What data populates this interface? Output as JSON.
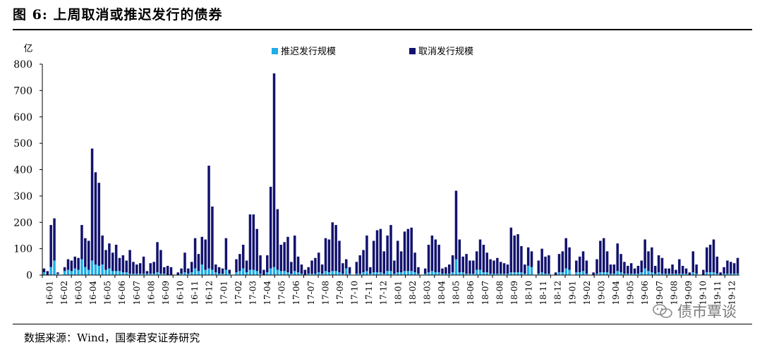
{
  "figure": {
    "title": "图 6:  上周取消或推迟发行的债券",
    "source": "数据来源：Wind，国泰君安证券研究",
    "watermark": "债市覃谈"
  },
  "colors": {
    "postponed": "#1EAEE8",
    "cancelled": "#12126E"
  },
  "chart_data": {
    "type": "bar",
    "stacked": true,
    "unit_label": "亿",
    "ylim": [
      0,
      800
    ],
    "yticks": [
      0,
      100,
      200,
      300,
      400,
      500,
      600,
      700,
      800
    ],
    "grid": false,
    "legend_position": "top",
    "series": [
      {
        "name": "推迟发行规模",
        "key": "postponed"
      },
      {
        "name": "取消发行规模",
        "key": "cancelled"
      }
    ],
    "x_ticks": [
      "16-01",
      "16-02",
      "16-03",
      "16-04",
      "16-05",
      "16-06",
      "16-07",
      "16-08",
      "16-09",
      "16-10",
      "16-11",
      "16-12",
      "17-01",
      "17-02",
      "17-03",
      "17-04",
      "17-05",
      "17-06",
      "17-07",
      "17-08",
      "17-09",
      "17-10",
      "17-11",
      "17-12",
      "18-01",
      "18-02",
      "18-03",
      "18-04",
      "18-05",
      "18-06",
      "18-07",
      "18-08",
      "18-09",
      "18-10",
      "18-11",
      "18-12",
      "19-01",
      "19-02",
      "19-03",
      "19-04",
      "19-05",
      "19-06",
      "19-07",
      "19-08",
      "19-09",
      "19-10",
      "19-11",
      "19-12"
    ],
    "weekly_totals": [
      25,
      15,
      190,
      215,
      10,
      0,
      30,
      60,
      55,
      70,
      65,
      190,
      140,
      130,
      480,
      390,
      350,
      150,
      95,
      120,
      85,
      115,
      65,
      75,
      55,
      95,
      50,
      40,
      45,
      70,
      15,
      45,
      50,
      125,
      95,
      30,
      35,
      30,
      0,
      10,
      25,
      85,
      25,
      50,
      140,
      80,
      145,
      135,
      415,
      260,
      40,
      30,
      25,
      140,
      20,
      0,
      60,
      80,
      115,
      55,
      230,
      230,
      175,
      75,
      20,
      75,
      335,
      765,
      250,
      115,
      125,
      145,
      50,
      150,
      70,
      40,
      20,
      30,
      55,
      65,
      85,
      40,
      140,
      135,
      200,
      190,
      130,
      45,
      60,
      30,
      0,
      50,
      75,
      95,
      150,
      30,
      130,
      170,
      175,
      90,
      150,
      190,
      55,
      130,
      90,
      165,
      175,
      180,
      85,
      30,
      0,
      25,
      115,
      150,
      135,
      115,
      25,
      30,
      40,
      75,
      320,
      135,
      70,
      80,
      55,
      55,
      90,
      135,
      115,
      85,
      60,
      55,
      65,
      50,
      45,
      40,
      180,
      150,
      155,
      110,
      40,
      105,
      90,
      0,
      55,
      100,
      70,
      75,
      0,
      10,
      80,
      90,
      140,
      105,
      0,
      55,
      70,
      90,
      55,
      0,
      10,
      60,
      130,
      140,
      90,
      40,
      40,
      120,
      80,
      50,
      35,
      45,
      25,
      35,
      55,
      135,
      90,
      105,
      35,
      75,
      65,
      25,
      25,
      40,
      20,
      60,
      35,
      25,
      10,
      90,
      40,
      0,
      20,
      105,
      115,
      135,
      70,
      10,
      30,
      55,
      50,
      45,
      65
    ],
    "weekly_postponed": [
      10,
      0,
      30,
      55,
      5,
      0,
      15,
      20,
      15,
      25,
      20,
      60,
      30,
      20,
      55,
      40,
      35,
      40,
      20,
      25,
      15,
      15,
      15,
      10,
      10,
      5,
      5,
      5,
      5,
      5,
      5,
      5,
      5,
      10,
      5,
      5,
      0,
      0,
      0,
      0,
      5,
      10,
      5,
      10,
      25,
      15,
      40,
      20,
      25,
      20,
      10,
      5,
      5,
      20,
      5,
      0,
      10,
      15,
      25,
      10,
      20,
      20,
      15,
      5,
      0,
      10,
      25,
      30,
      20,
      15,
      15,
      10,
      5,
      15,
      10,
      5,
      0,
      5,
      5,
      5,
      10,
      5,
      15,
      10,
      15,
      15,
      10,
      5,
      25,
      5,
      0,
      5,
      5,
      10,
      15,
      5,
      10,
      10,
      10,
      5,
      15,
      15,
      5,
      10,
      10,
      15,
      15,
      15,
      10,
      5,
      0,
      5,
      10,
      15,
      10,
      10,
      5,
      5,
      5,
      10,
      60,
      10,
      10,
      5,
      5,
      5,
      20,
      20,
      10,
      10,
      5,
      5,
      5,
      5,
      5,
      5,
      10,
      10,
      10,
      10,
      5,
      35,
      30,
      0,
      5,
      10,
      5,
      5,
      0,
      0,
      10,
      10,
      25,
      20,
      0,
      10,
      10,
      15,
      5,
      0,
      0,
      5,
      10,
      10,
      10,
      5,
      5,
      15,
      10,
      5,
      5,
      5,
      5,
      5,
      10,
      25,
      15,
      10,
      5,
      10,
      5,
      5,
      5,
      5,
      5,
      5,
      5,
      5,
      0,
      10,
      5,
      0,
      0,
      10,
      10,
      10,
      5,
      0,
      5,
      5,
      5,
      5,
      5
    ]
  }
}
